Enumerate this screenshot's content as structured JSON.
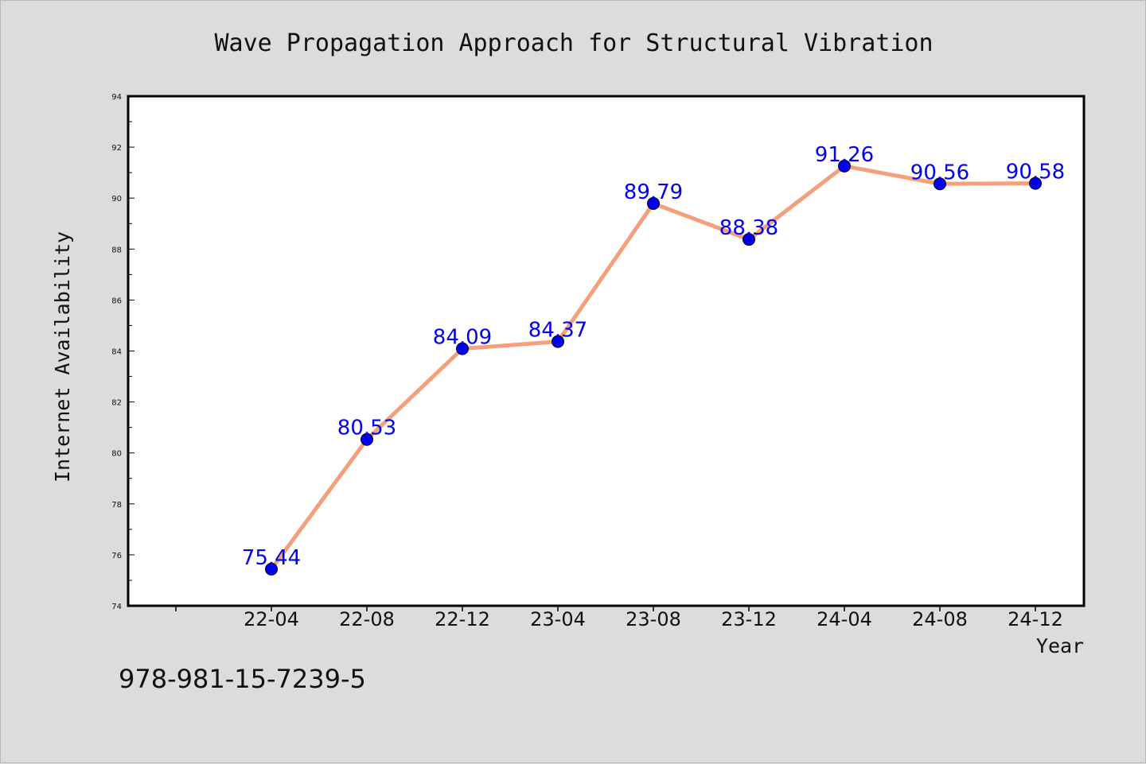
{
  "chart_data": {
    "type": "line",
    "title": "Wave Propagation Approach for Structural Vibration",
    "xlabel": "Year",
    "ylabel": "Internet Availability",
    "categories": [
      "22-04",
      "22-08",
      "22-12",
      "23-04",
      "23-08",
      "23-12",
      "24-04",
      "24-08",
      "24-12"
    ],
    "series": [
      {
        "values": [
          75.44,
          80.53,
          84.09,
          84.37,
          89.79,
          88.38,
          91.26,
          90.56,
          90.58
        ]
      }
    ],
    "data_labels": [
      "75.44",
      "80.53",
      "84.09",
      "84.37",
      "89.79",
      "88.38",
      "91.26",
      "90.56",
      "90.58"
    ],
    "ylim": [
      74,
      94
    ],
    "yticks": [
      "74",
      "76",
      "78",
      "80",
      "82",
      "84",
      "86",
      "88",
      "90",
      "92",
      "94"
    ],
    "grid": false,
    "line_color": "#f4a07c",
    "marker_color": "#0000ee",
    "label_color": "#0000ee",
    "background_color": "#dcdcdc",
    "plot_background_color": "#ffffff"
  },
  "footer": {
    "isbn": "978-981-15-7239-5"
  }
}
